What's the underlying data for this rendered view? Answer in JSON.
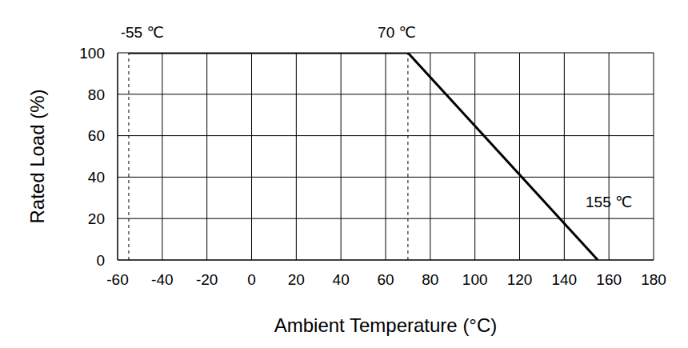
{
  "chart_data": {
    "type": "line",
    "x": [
      -55,
      70,
      155
    ],
    "values": [
      100,
      100,
      0
    ],
    "color": "#000000",
    "xlabel": "Ambient Temperature (°C)",
    "ylabel": "Rated Load (%)",
    "xlim": [
      -60,
      180
    ],
    "xticks": [
      -60,
      -40,
      -20,
      0,
      20,
      40,
      60,
      80,
      100,
      120,
      140,
      160,
      180
    ],
    "ylim": [
      0,
      100
    ],
    "yticks": [
      0,
      20,
      40,
      60,
      80,
      100
    ],
    "grid": true,
    "reference_lines": [
      {
        "x": -55,
        "line_style": "dashed"
      },
      {
        "x": 70,
        "line_style": "dashed"
      }
    ],
    "annotations": [
      {
        "text": "-55 ℃",
        "x": -49,
        "y": 110
      },
      {
        "text": "70 ℃",
        "x": 65,
        "y": 110
      },
      {
        "text": "155 ℃",
        "x": 160,
        "y": 28
      }
    ]
  }
}
